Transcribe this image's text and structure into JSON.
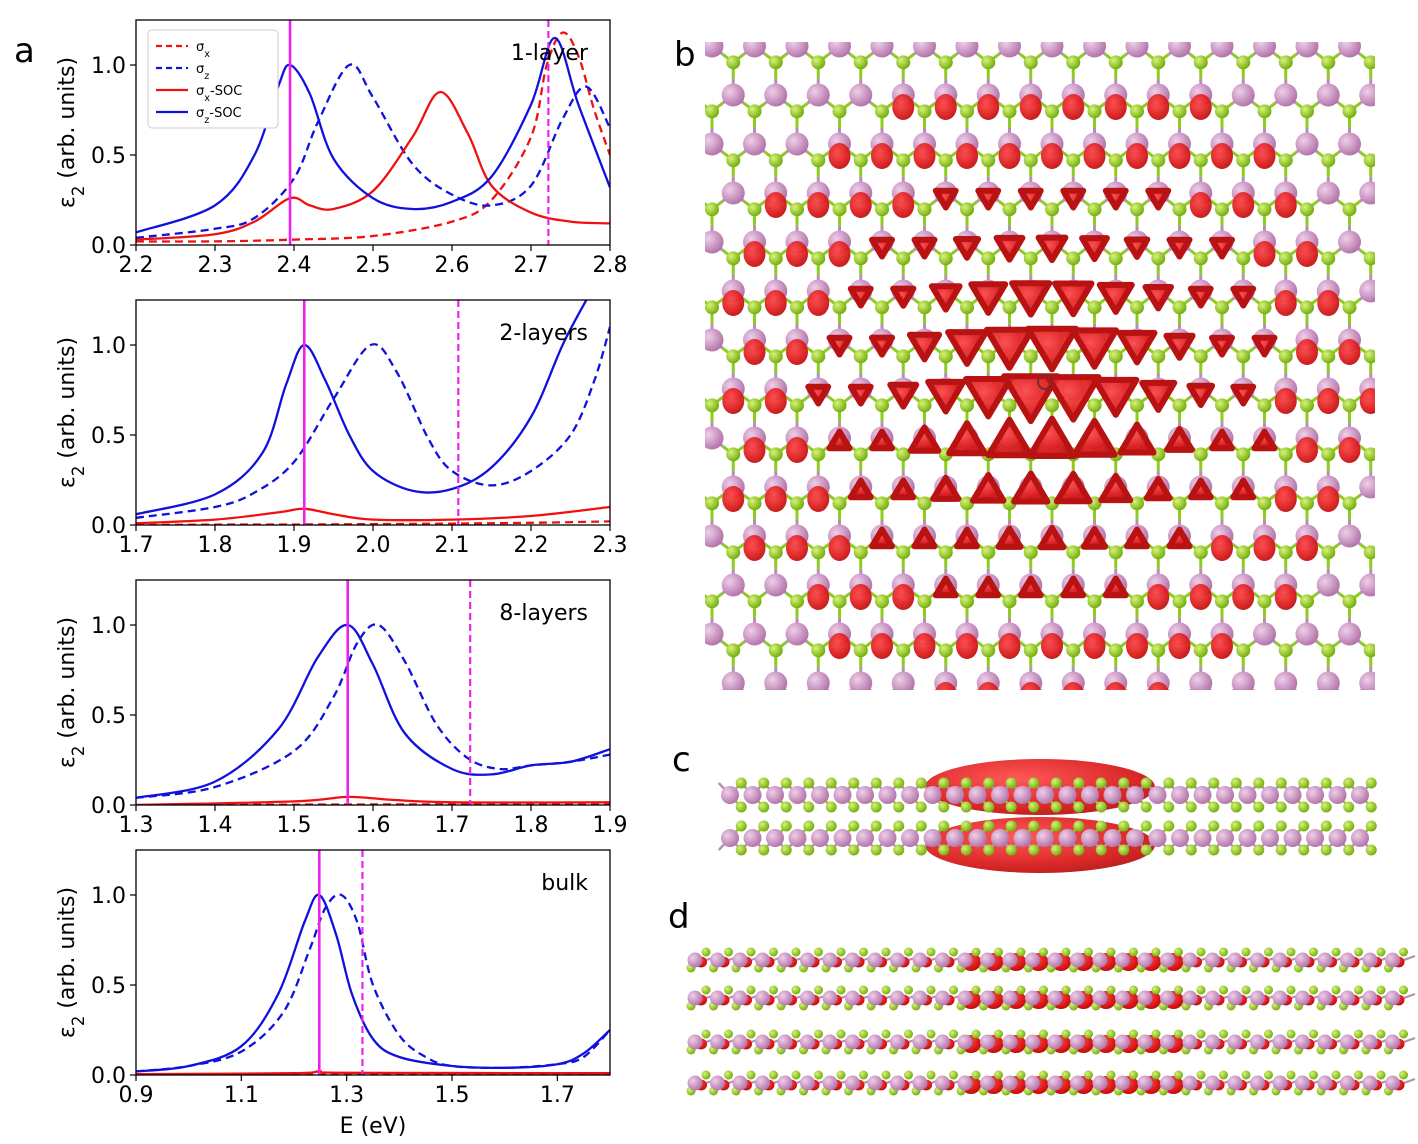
{
  "panel_labels": [
    "a",
    "b",
    "c",
    "d"
  ],
  "colors": {
    "sigma_x": "#ee1111",
    "sigma_z": "#1111dd",
    "marker": "#ee22ee",
    "atom_large": "#c986c0",
    "atom_small": "#88cc11",
    "density": "#dd1a1a"
  },
  "legend": [
    {
      "label": "σx",
      "color": "#ee1111",
      "dash": true
    },
    {
      "label": "σz",
      "color": "#1111dd",
      "dash": true
    },
    {
      "label": "σx-SOC",
      "color": "#ee1111",
      "dash": false
    },
    {
      "label": "σz-SOC",
      "color": "#1111dd",
      "dash": false
    }
  ],
  "chart_data": [
    {
      "type": "line",
      "label": "1-layer",
      "xlabel": "",
      "ylabel": "ε2 (arb. units)",
      "xlim": [
        2.2,
        2.8
      ],
      "ylim": [
        0.0,
        1.25
      ],
      "xticks": [
        "2.2",
        "2.3",
        "2.4",
        "2.5",
        "2.6",
        "2.7",
        "2.8"
      ],
      "yticks": [
        "0.0",
        "0.5",
        "1.0"
      ],
      "marker_solid": 2.395,
      "marker_dashed": 2.722,
      "series": [
        {
          "name": "σx",
          "style": "dashed",
          "color": "#ee1111",
          "x": [
            2.2,
            2.3,
            2.4,
            2.5,
            2.6,
            2.65,
            2.7,
            2.72,
            2.74,
            2.76,
            2.78,
            2.8
          ],
          "y": [
            0.02,
            0.02,
            0.03,
            0.05,
            0.13,
            0.25,
            0.6,
            1.0,
            1.18,
            1.05,
            0.75,
            0.5
          ]
        },
        {
          "name": "σz",
          "style": "dashed",
          "color": "#1111dd",
          "x": [
            2.2,
            2.3,
            2.35,
            2.4,
            2.43,
            2.47,
            2.5,
            2.55,
            2.6,
            2.65,
            2.7,
            2.74,
            2.77,
            2.8
          ],
          "y": [
            0.04,
            0.09,
            0.15,
            0.37,
            0.68,
            1.0,
            0.82,
            0.45,
            0.28,
            0.22,
            0.33,
            0.7,
            0.88,
            0.65
          ]
        },
        {
          "name": "σx-SOC",
          "style": "solid",
          "color": "#ee1111",
          "x": [
            2.2,
            2.3,
            2.35,
            2.395,
            2.42,
            2.45,
            2.5,
            2.55,
            2.585,
            2.62,
            2.65,
            2.7,
            2.75,
            2.8
          ],
          "y": [
            0.03,
            0.06,
            0.13,
            0.26,
            0.22,
            0.2,
            0.3,
            0.6,
            0.85,
            0.62,
            0.33,
            0.18,
            0.13,
            0.12
          ]
        },
        {
          "name": "σz-SOC",
          "style": "solid",
          "color": "#1111dd",
          "x": [
            2.2,
            2.3,
            2.35,
            2.38,
            2.395,
            2.42,
            2.45,
            2.5,
            2.55,
            2.6,
            2.65,
            2.7,
            2.73,
            2.76,
            2.8
          ],
          "y": [
            0.07,
            0.22,
            0.5,
            0.88,
            1.0,
            0.84,
            0.48,
            0.26,
            0.2,
            0.24,
            0.38,
            0.78,
            1.15,
            0.78,
            0.32
          ]
        }
      ]
    },
    {
      "type": "line",
      "label": "2-layers",
      "xlabel": "",
      "ylabel": "ε2 (arb. units)",
      "xlim": [
        1.7,
        2.3
      ],
      "ylim": [
        0.0,
        1.25
      ],
      "xticks": [
        "1.7",
        "1.8",
        "1.9",
        "2.0",
        "2.1",
        "2.2",
        "2.3"
      ],
      "yticks": [
        "0.0",
        "0.5",
        "1.0"
      ],
      "marker_solid": 1.913,
      "marker_dashed": 2.108,
      "series": [
        {
          "name": "σx",
          "style": "dashed",
          "color": "#ee1111",
          "x": [
            1.7,
            1.8,
            1.9,
            2.0,
            2.1,
            2.2,
            2.3
          ],
          "y": [
            0.0,
            0.002,
            0.003,
            0.005,
            0.008,
            0.012,
            0.02
          ]
        },
        {
          "name": "σz",
          "style": "dashed",
          "color": "#1111dd",
          "x": [
            1.7,
            1.8,
            1.85,
            1.9,
            1.95,
            1.997,
            2.03,
            2.07,
            2.1,
            2.15,
            2.2,
            2.25,
            2.28,
            2.3
          ],
          "y": [
            0.04,
            0.1,
            0.18,
            0.35,
            0.7,
            1.0,
            0.85,
            0.48,
            0.3,
            0.22,
            0.3,
            0.5,
            0.8,
            1.1
          ]
        },
        {
          "name": "σx-SOC",
          "style": "solid",
          "color": "#ee1111",
          "x": [
            1.7,
            1.8,
            1.88,
            1.913,
            1.95,
            2.0,
            2.1,
            2.2,
            2.3
          ],
          "y": [
            0.01,
            0.03,
            0.07,
            0.09,
            0.06,
            0.03,
            0.03,
            0.05,
            0.1
          ]
        },
        {
          "name": "σz-SOC",
          "style": "solid",
          "color": "#1111dd",
          "x": [
            1.7,
            1.8,
            1.86,
            1.89,
            1.913,
            1.94,
            1.97,
            2.0,
            2.05,
            2.1,
            2.15,
            2.2,
            2.24,
            2.27
          ],
          "y": [
            0.06,
            0.17,
            0.4,
            0.78,
            1.0,
            0.8,
            0.5,
            0.3,
            0.19,
            0.2,
            0.32,
            0.6,
            1.0,
            1.25
          ]
        }
      ]
    },
    {
      "type": "line",
      "label": "8-layers",
      "xlabel": "",
      "ylabel": "ε2 (arb. units)",
      "xlim": [
        1.3,
        1.9
      ],
      "ylim": [
        0.0,
        1.25
      ],
      "xticks": [
        "1.3",
        "1.4",
        "1.5",
        "1.6",
        "1.7",
        "1.8",
        "1.9"
      ],
      "yticks": [
        "0.0",
        "0.5",
        "1.0"
      ],
      "marker_solid": 1.568,
      "marker_dashed": 1.723,
      "series": [
        {
          "name": "σx",
          "style": "dashed",
          "color": "#ee1111",
          "x": [
            1.3,
            1.5,
            1.7,
            1.9
          ],
          "y": [
            0.0,
            0.002,
            0.004,
            0.006
          ]
        },
        {
          "name": "σz",
          "style": "dashed",
          "color": "#1111dd",
          "x": [
            1.3,
            1.4,
            1.5,
            1.55,
            1.58,
            1.607,
            1.64,
            1.68,
            1.72,
            1.76,
            1.8,
            1.85,
            1.9
          ],
          "y": [
            0.04,
            0.1,
            0.3,
            0.6,
            0.9,
            1.0,
            0.8,
            0.45,
            0.26,
            0.2,
            0.22,
            0.24,
            0.28
          ]
        },
        {
          "name": "σx-SOC",
          "style": "solid",
          "color": "#ee1111",
          "x": [
            1.3,
            1.5,
            1.568,
            1.62,
            1.7,
            1.9
          ],
          "y": [
            0.0,
            0.02,
            0.045,
            0.03,
            0.015,
            0.015
          ]
        },
        {
          "name": "σz-SOC",
          "style": "solid",
          "color": "#1111dd",
          "x": [
            1.3,
            1.4,
            1.48,
            1.53,
            1.568,
            1.6,
            1.64,
            1.7,
            1.75,
            1.8,
            1.85,
            1.9
          ],
          "y": [
            0.04,
            0.13,
            0.42,
            0.82,
            1.0,
            0.78,
            0.4,
            0.2,
            0.17,
            0.22,
            0.24,
            0.31
          ]
        }
      ]
    },
    {
      "type": "line",
      "label": "bulk",
      "xlabel": "E (eV)",
      "ylabel": "ε2 (arb. units)",
      "xlim": [
        0.9,
        1.8
      ],
      "ylim": [
        0.0,
        1.25
      ],
      "xticks": [
        "0.9",
        "1.1",
        "1.3",
        "1.5",
        "1.7"
      ],
      "yticks": [
        "0.0",
        "0.5",
        "1.0"
      ],
      "marker_solid": 1.248,
      "marker_dashed": 1.33,
      "series": [
        {
          "name": "σx",
          "style": "dashed",
          "color": "#ee1111",
          "x": [
            0.9,
            1.3,
            1.8
          ],
          "y": [
            0.0,
            0.003,
            0.005
          ]
        },
        {
          "name": "σz",
          "style": "dashed",
          "color": "#1111dd",
          "x": [
            0.9,
            1.0,
            1.1,
            1.18,
            1.23,
            1.26,
            1.29,
            1.32,
            1.35,
            1.4,
            1.45,
            1.5,
            1.6,
            1.7,
            1.75,
            1.8
          ],
          "y": [
            0.02,
            0.05,
            0.13,
            0.35,
            0.7,
            0.93,
            1.0,
            0.85,
            0.5,
            0.22,
            0.1,
            0.05,
            0.04,
            0.06,
            0.1,
            0.25
          ]
        },
        {
          "name": "σx-SOC",
          "style": "solid",
          "color": "#ee1111",
          "x": [
            0.9,
            1.2,
            1.248,
            1.3,
            1.8
          ],
          "y": [
            0.005,
            0.01,
            0.02,
            0.012,
            0.01
          ]
        },
        {
          "name": "σz-SOC",
          "style": "solid",
          "color": "#1111dd",
          "x": [
            0.9,
            1.0,
            1.1,
            1.17,
            1.22,
            1.248,
            1.28,
            1.31,
            1.35,
            1.4,
            1.5,
            1.6,
            1.7,
            1.75,
            1.8
          ],
          "y": [
            0.02,
            0.05,
            0.16,
            0.45,
            0.85,
            1.0,
            0.78,
            0.45,
            0.2,
            0.1,
            0.05,
            0.04,
            0.06,
            0.12,
            0.25
          ]
        }
      ]
    }
  ]
}
